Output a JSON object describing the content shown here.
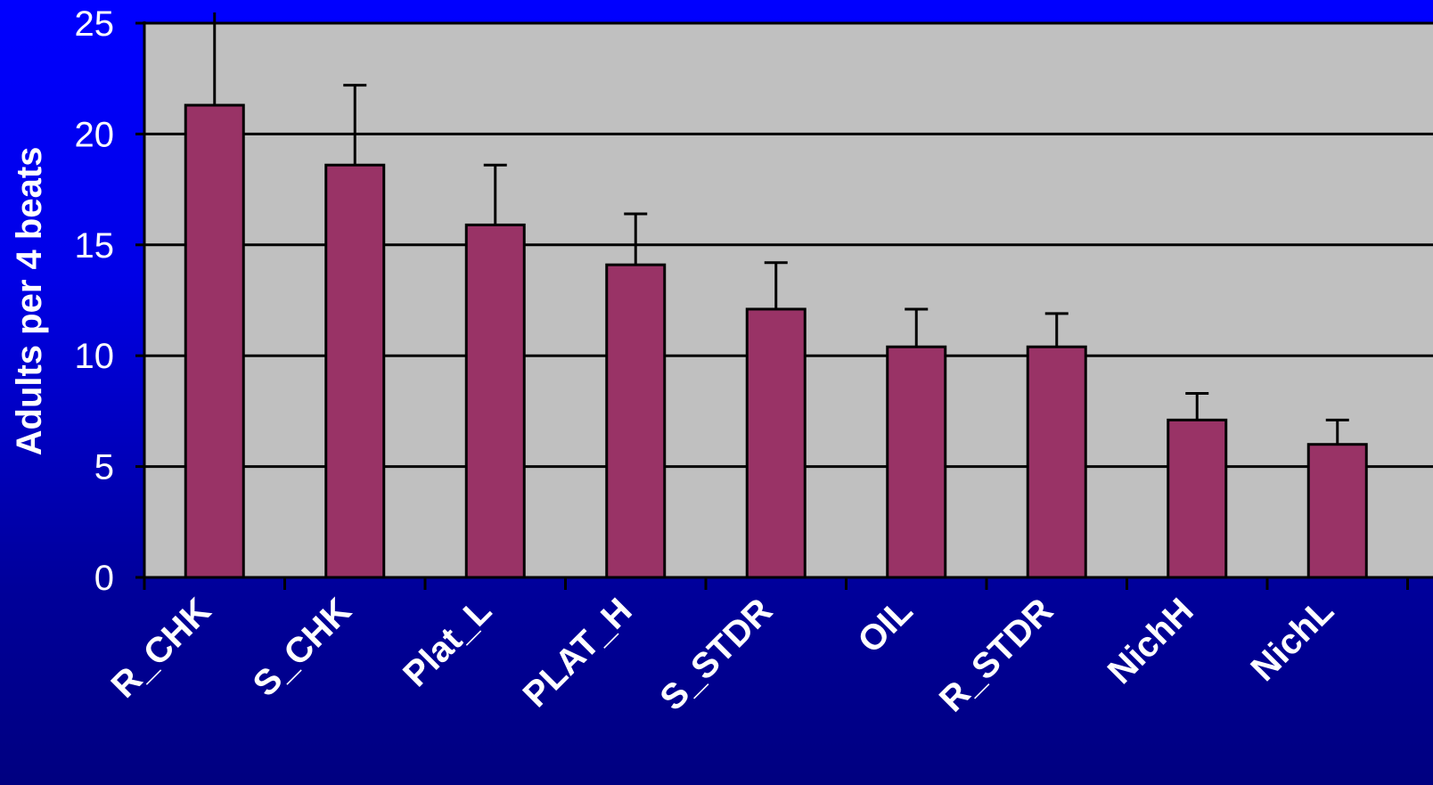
{
  "chart_data": {
    "type": "bar",
    "title": "",
    "xlabel": "",
    "ylabel": "Adults per 4 beats",
    "categories": [
      "R_CHK",
      "S_CHK",
      "Plat_L",
      "PLAT_H",
      "S_STDR",
      "OIL",
      "R_STDR",
      "NichH",
      "NichL"
    ],
    "series": [
      {
        "values": [
          21.3,
          18.6,
          15.9,
          14.1,
          12.1,
          10.4,
          10.4,
          7.1,
          6.0
        ],
        "error_plus": [
          4.2,
          3.6,
          2.7,
          2.3,
          2.1,
          1.7,
          1.5,
          1.2,
          1.1
        ]
      }
    ],
    "ylim": [
      0,
      25
    ],
    "yticks": [
      0,
      5,
      10,
      15,
      20,
      25
    ],
    "grid": true,
    "legend": "none",
    "colors": {
      "bar": "#993366",
      "plot_background": "#c0c0c0",
      "gridline": "#000000",
      "text": "#ffffff"
    }
  }
}
